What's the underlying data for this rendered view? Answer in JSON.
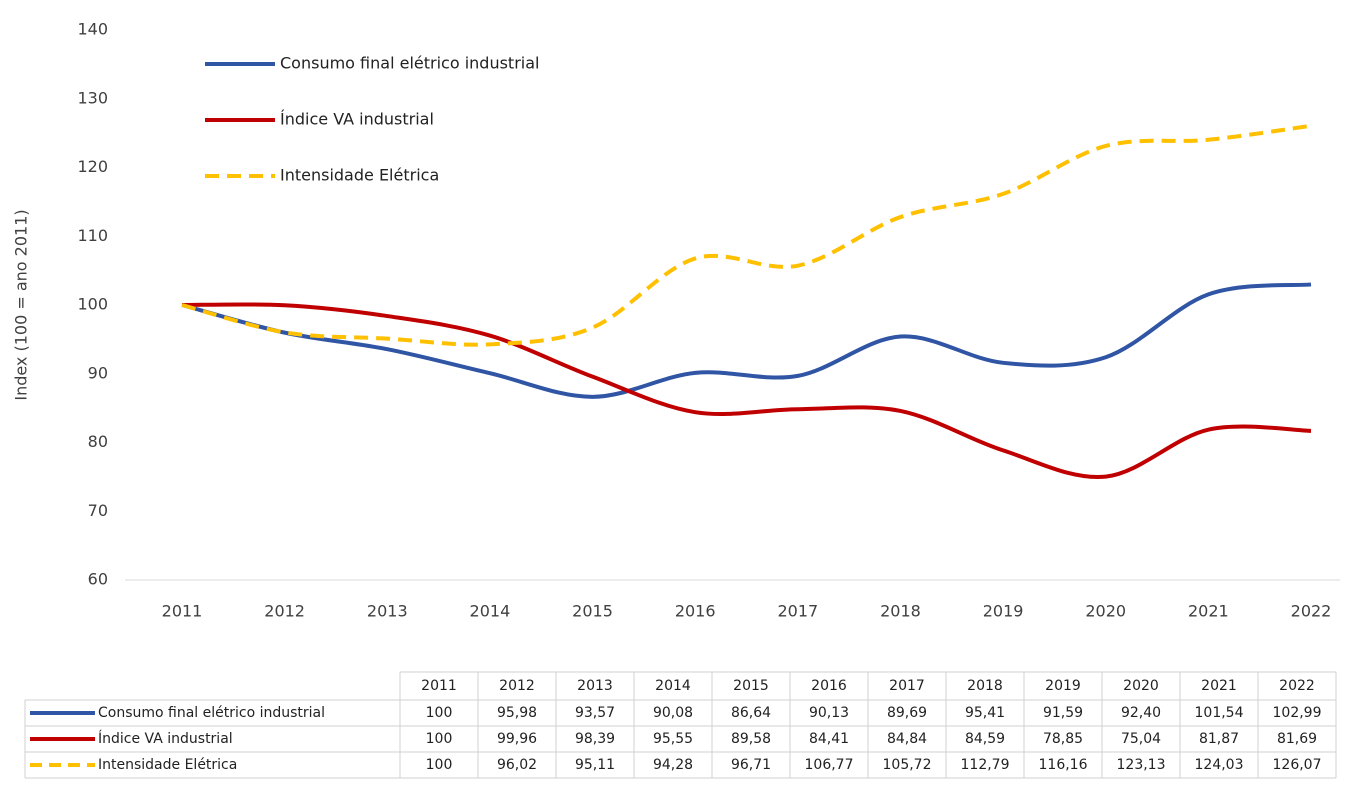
{
  "chart_data": {
    "type": "line",
    "ylabel": "Index (100 = ano 2011)",
    "categories": [
      "2011",
      "2012",
      "2013",
      "2014",
      "2015",
      "2016",
      "2017",
      "2018",
      "2019",
      "2020",
      "2021",
      "2022"
    ],
    "series": [
      {
        "name": "Consumo final elétrico industrial",
        "color": "#2f55a4",
        "dash": false,
        "values": [
          100,
          95.98,
          93.57,
          90.08,
          86.64,
          90.13,
          89.69,
          95.41,
          91.59,
          92.4,
          101.54,
          102.99
        ],
        "value_labels": [
          "100",
          "95,98",
          "93,57",
          "90,08",
          "86,64",
          "90,13",
          "89,69",
          "95,41",
          "91,59",
          "92,40",
          "101,54",
          "102,99"
        ]
      },
      {
        "name": "Índice VA industrial",
        "color": "#c00000",
        "dash": false,
        "values": [
          100,
          99.96,
          98.39,
          95.55,
          89.58,
          84.41,
          84.84,
          84.59,
          78.85,
          75.04,
          81.87,
          81.69
        ],
        "value_labels": [
          "100",
          "99,96",
          "98,39",
          "95,55",
          "89,58",
          "84,41",
          "84,84",
          "84,59",
          "78,85",
          "75,04",
          "81,87",
          "81,69"
        ]
      },
      {
        "name": "Intensidade Elétrica",
        "color": "#ffc000",
        "dash": true,
        "values": [
          100,
          96.02,
          95.11,
          94.28,
          96.71,
          106.77,
          105.72,
          112.79,
          116.16,
          123.13,
          124.03,
          126.07
        ],
        "value_labels": [
          "100",
          "96,02",
          "95,11",
          "94,28",
          "96,71",
          "106,77",
          "105,72",
          "112,79",
          "116,16",
          "123,13",
          "124,03",
          "126,07"
        ]
      }
    ],
    "ylim": [
      60,
      140
    ],
    "yticks": [
      60,
      70,
      80,
      90,
      100,
      110,
      120,
      130,
      140
    ],
    "grid": false,
    "legend": "upper left",
    "smooth": true,
    "table": true
  }
}
